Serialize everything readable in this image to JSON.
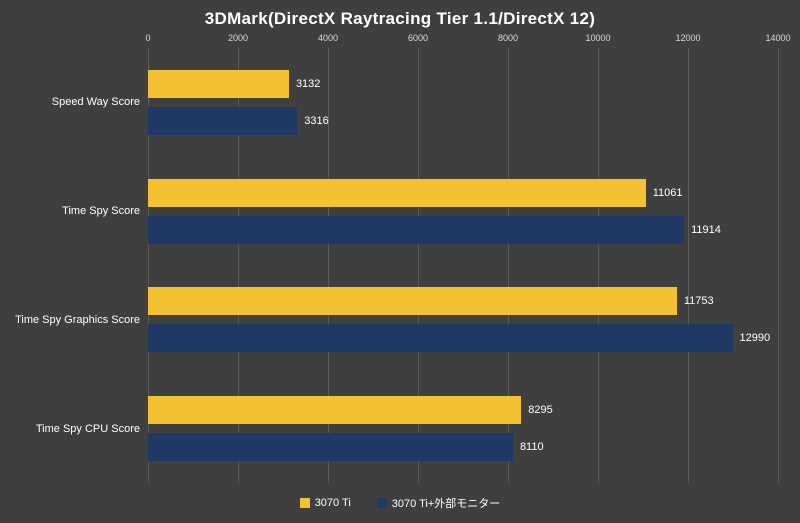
{
  "chart_data": {
    "type": "bar",
    "orientation": "horizontal",
    "title": "3DMark(DirectX Raytracing Tier 1.1/DirectX 12)",
    "categories": [
      "Speed Way Score",
      "Time Spy Score",
      "Time Spy Graphics Score",
      "Time Spy CPU Score"
    ],
    "series": [
      {
        "name": "3070 Ti",
        "color": "#F2C233",
        "values": [
          3132,
          11061,
          11753,
          8295
        ]
      },
      {
        "name": "3070 Ti+外部モニター",
        "color": "#1F3864",
        "values": [
          3316,
          11914,
          12990,
          8110
        ]
      }
    ],
    "xlim": [
      0,
      14000
    ],
    "x_ticks": [
      0,
      2000,
      4000,
      6000,
      8000,
      10000,
      12000,
      14000
    ],
    "grid": true,
    "value_labels": true,
    "legend_position": "bottom"
  },
  "colors": {
    "background": "#3F3F3F",
    "gridline": "#5B5B5B",
    "text": "#FFFFFF",
    "tick_text": "#D9D9D9"
  }
}
